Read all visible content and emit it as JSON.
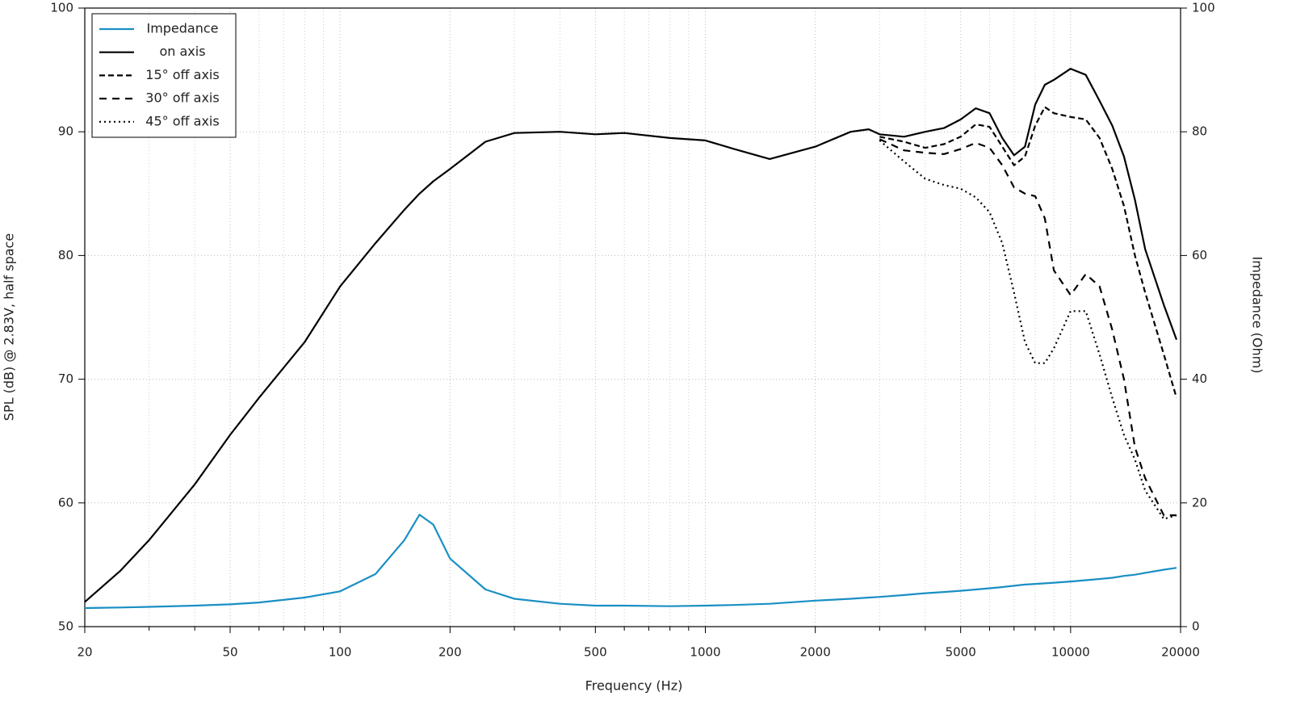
{
  "chart_data": {
    "type": "line",
    "xlabel": "Frequency (Hz)",
    "ylabel": "SPL (dB) @ 2.83V, half space",
    "y2label": "Impedance (Ohm)",
    "xscale": "log",
    "grid": true,
    "legend": "upper left",
    "xlim": [
      20,
      20000
    ],
    "xticks": [
      20,
      50,
      100,
      200,
      500,
      1000,
      2000,
      5000,
      10000,
      20000
    ],
    "xminorticks": [
      30,
      40,
      60,
      70,
      80,
      90,
      300,
      400,
      600,
      700,
      800,
      900,
      3000,
      4000,
      6000,
      7000,
      8000,
      9000
    ],
    "ylim": [
      50,
      100
    ],
    "yticks": [
      50,
      60,
      70,
      80,
      90,
      100
    ],
    "y2lim": [
      0,
      100
    ],
    "y2ticks": [
      0,
      20,
      40,
      60,
      80,
      100
    ],
    "x": [
      20,
      25,
      30,
      40,
      50,
      60,
      80,
      100,
      125,
      150,
      165,
      180,
      200,
      250,
      300,
      400,
      500,
      600,
      800,
      1000,
      1200,
      1500,
      2000,
      2500,
      2800,
      3000,
      3500,
      4000,
      4500,
      5000,
      5500,
      6000,
      6500,
      7000,
      7500,
      8000,
      8500,
      9000,
      10000,
      11000,
      12000,
      13000,
      14000,
      15000,
      16000,
      18000,
      19500
    ],
    "series": [
      {
        "name": "Impedance",
        "color": "#1a8fc4",
        "dash": "solid",
        "axis": "y2",
        "values": [
          3,
          3.1,
          3.2,
          3.4,
          3.6,
          3.9,
          4.7,
          5.7,
          8.5,
          14,
          18.1,
          16.5,
          11,
          6,
          4.5,
          3.7,
          3.4,
          3.4,
          3.3,
          3.4,
          3.5,
          3.7,
          4.2,
          4.5,
          4.7,
          4.8,
          5.1,
          5.4,
          5.6,
          5.8,
          6,
          6.2,
          6.4,
          6.6,
          6.8,
          6.9,
          7,
          7.1,
          7.3,
          7.5,
          7.7,
          7.9,
          8.2,
          8.4,
          8.7,
          9.2,
          9.5
        ]
      },
      {
        "name": "on axis",
        "color": "#000000",
        "dash": "solid",
        "values": [
          52,
          54.5,
          57,
          61.5,
          65.5,
          68.5,
          73,
          77.5,
          81,
          83.7,
          85,
          86,
          87,
          89.2,
          89.9,
          90,
          89.8,
          89.9,
          89.5,
          89.3,
          88.6,
          87.8,
          88.8,
          90,
          90.2,
          89.8,
          89.6,
          90,
          90.3,
          91,
          91.9,
          91.5,
          89.5,
          88.1,
          88.8,
          92.2,
          93.8,
          94.2,
          95.1,
          94.6,
          92.5,
          90.5,
          88,
          84.5,
          80.5,
          76,
          73.2
        ]
      },
      {
        "name": "15° off axis",
        "color": "#000000",
        "dash": "dashed",
        "values": [
          null,
          null,
          null,
          null,
          null,
          null,
          null,
          null,
          null,
          null,
          null,
          null,
          null,
          null,
          null,
          null,
          null,
          null,
          null,
          null,
          null,
          null,
          null,
          null,
          null,
          89.6,
          89.2,
          88.7,
          89,
          89.6,
          90.6,
          90.4,
          88.8,
          87.3,
          88,
          90.5,
          92,
          91.5,
          91.2,
          91,
          89.5,
          87,
          84,
          80,
          77,
          72,
          68.5
        ]
      },
      {
        "name": "30° off axis",
        "color": "#000000",
        "dash": "long-dashed",
        "values": [
          null,
          null,
          null,
          null,
          null,
          null,
          null,
          null,
          null,
          null,
          null,
          null,
          null,
          null,
          null,
          null,
          null,
          null,
          null,
          null,
          null,
          null,
          null,
          null,
          null,
          89.4,
          88.5,
          88.3,
          88.2,
          88.6,
          89.1,
          88.7,
          87.3,
          85.5,
          85,
          84.8,
          83,
          78.8,
          76.8,
          78.5,
          77.5,
          74,
          70,
          64.5,
          62,
          59,
          59
        ]
      },
      {
        "name": "45° off axis",
        "color": "#000000",
        "dash": "dotted",
        "values": [
          null,
          null,
          null,
          null,
          null,
          null,
          null,
          null,
          null,
          null,
          null,
          null,
          null,
          null,
          null,
          null,
          null,
          null,
          null,
          null,
          null,
          null,
          null,
          null,
          null,
          89.3,
          87.6,
          86.2,
          85.7,
          85.4,
          84.7,
          83.5,
          81,
          77,
          73,
          71.3,
          71.3,
          72.5,
          75.5,
          75.5,
          72,
          68.5,
          65.5,
          63.5,
          61,
          58.7,
          59
        ]
      }
    ]
  }
}
